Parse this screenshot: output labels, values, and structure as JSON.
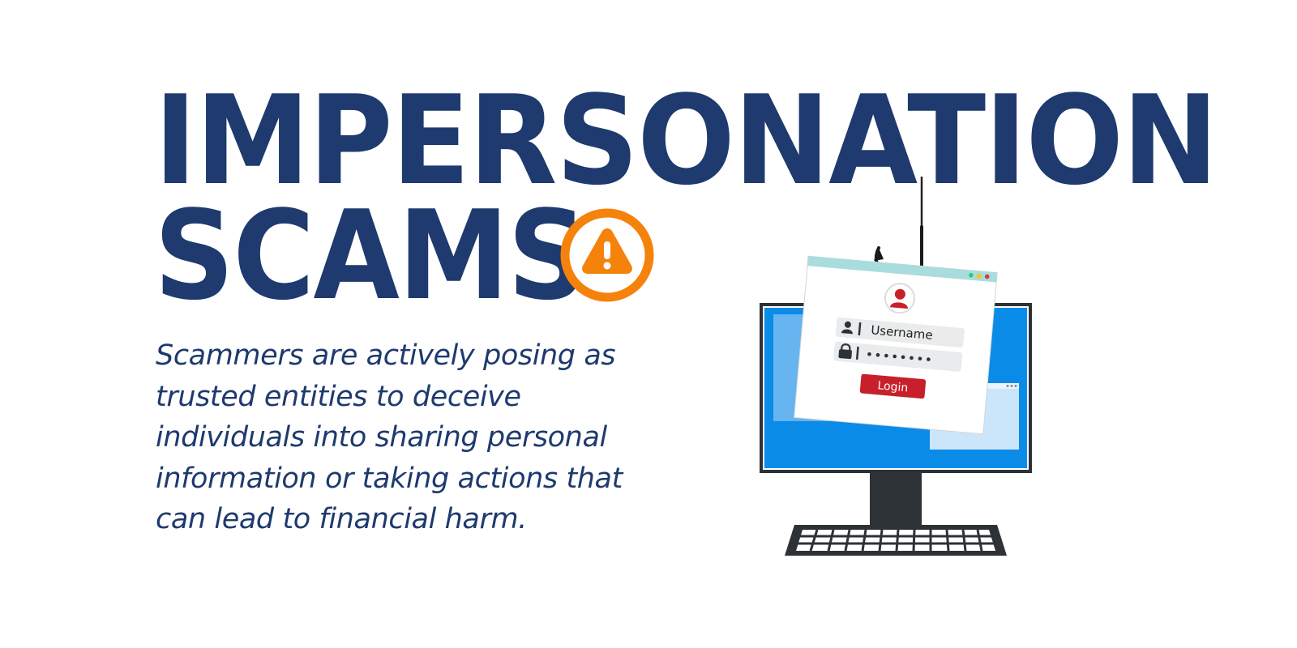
{
  "headline": {
    "line1": "IMPERSONATION",
    "line2": "SCAMS"
  },
  "description": "Scammers are actively posing as trusted entities to deceive individuals into sharing personal information or taking actions that can lead to financial harm.",
  "login_window": {
    "username_label": "Username",
    "password_mask": "••••••••",
    "login_label": "Login"
  },
  "icons": {
    "warning": "warning-icon",
    "user": "user-icon",
    "lock": "lock-icon",
    "hook": "fishing-hook-icon",
    "monitor": "monitor-icon",
    "keyboard": "keyboard-icon"
  },
  "colors": {
    "navy": "#1e3a6e",
    "orange": "#f5820a",
    "login_red": "#c8202b",
    "screen_blue": "#0a8be8",
    "window_bar": "#a9dcdd"
  }
}
